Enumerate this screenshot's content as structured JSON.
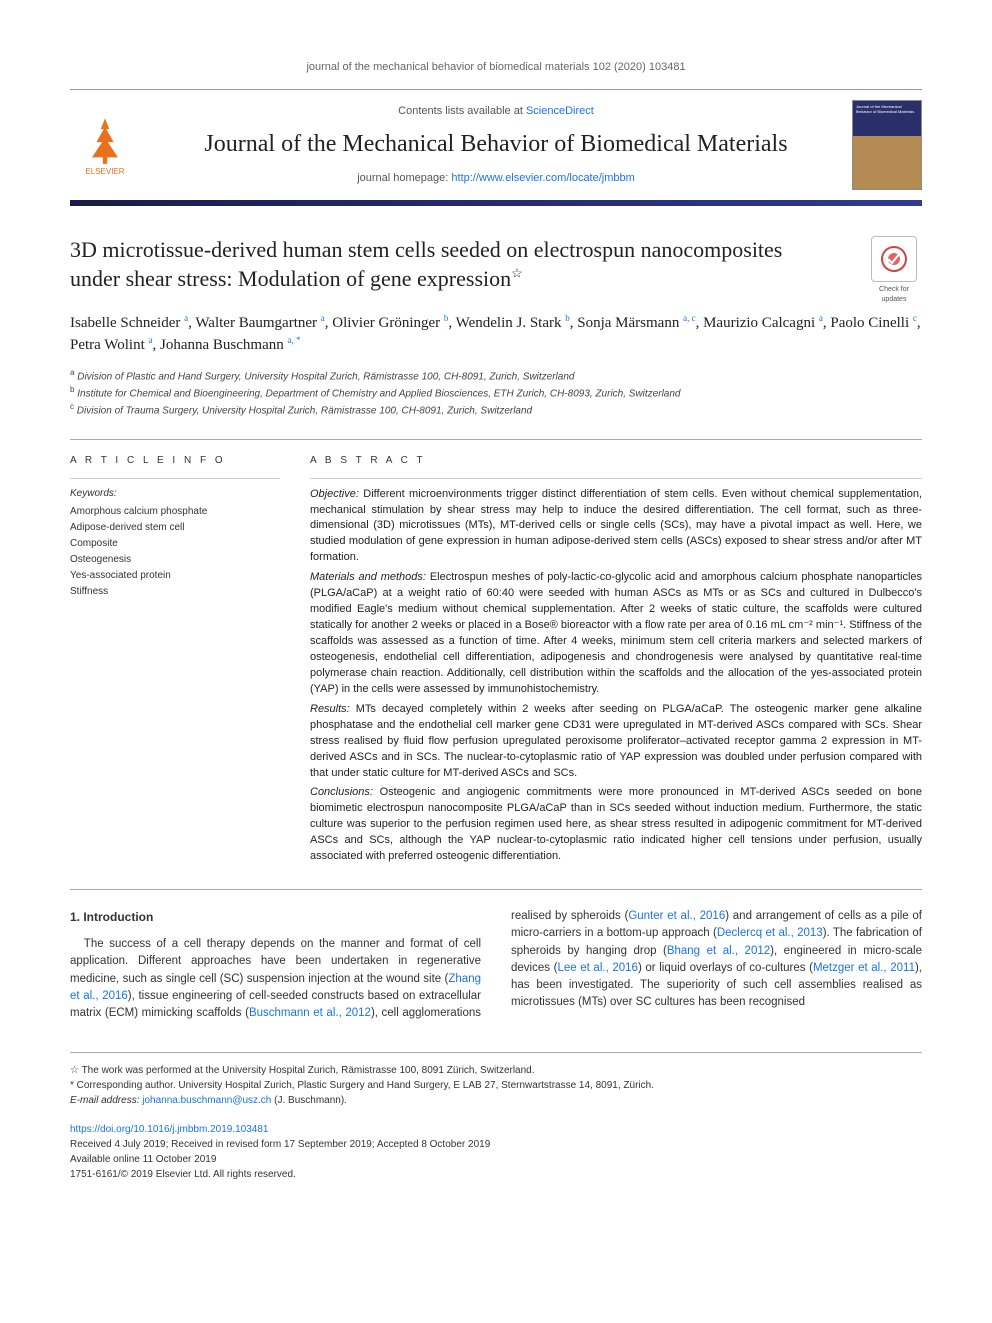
{
  "running_head": "journal of the mechanical behavior of biomedical materials 102 (2020) 103481",
  "masthead": {
    "contents_prefix": "Contents lists available at ",
    "contents_link": "ScienceDirect",
    "journal_name": "Journal of the Mechanical Behavior of Biomedical Materials",
    "homepage_prefix": "journal homepage: ",
    "homepage_url": "http://www.elsevier.com/locate/jmbbm",
    "publisher": "ELSEVIER"
  },
  "check_updates_label": "Check for updates",
  "article": {
    "title": "3D microtissue-derived human stem cells seeded on electrospun nanocomposites under shear stress: Modulation of gene expression",
    "title_note_marker": "☆",
    "authors_html": "Isabelle Schneider <sup>a</sup>, Walter Baumgartner <sup>a</sup>, Olivier Gröninger <sup>b</sup>, Wendelin J. Stark <sup>b</sup>, Sonja Märsmann <sup>a, c</sup>, Maurizio Calcagni <sup>a</sup>, Paolo Cinelli <sup>c</sup>, Petra Wolint <sup>a</sup>, Johanna Buschmann <sup>a, *</sup>",
    "affiliations": [
      "a Division of Plastic and Hand Surgery, University Hospital Zurich, Rämistrasse 100, CH-8091, Zurich, Switzerland",
      "b Institute for Chemical and Bioengineering, Department of Chemistry and Applied Biosciences, ETH Zurich, CH-8093, Zurich, Switzerland",
      "c Division of Trauma Surgery, University Hospital Zurich, Rämistrasse 100, CH-8091, Zurich, Switzerland"
    ]
  },
  "article_info": {
    "heading": "A R T I C L E  I N F O",
    "keywords_label": "Keywords:",
    "keywords": [
      "Amorphous calcium phosphate",
      "Adipose-derived stem cell",
      "Composite",
      "Osteogenesis",
      "Yes-associated protein",
      "Stiffness"
    ]
  },
  "abstract": {
    "heading": "A B S T R A C T",
    "objective_label": "Objective:",
    "objective": "Different microenvironments trigger distinct differentiation of stem cells. Even without chemical supplementation, mechanical stimulation by shear stress may help to induce the desired differentiation. The cell format, such as three-dimensional (3D) microtissues (MTs), MT-derived cells or single cells (SCs), may have a pivotal impact as well. Here, we studied modulation of gene expression in human adipose-derived stem cells (ASCs) exposed to shear stress and/or after MT formation.",
    "methods_label": "Materials and methods:",
    "methods": "Electrospun meshes of poly-lactic-co-glycolic acid and amorphous calcium phosphate nanoparticles (PLGA/aCaP) at a weight ratio of 60:40 were seeded with human ASCs as MTs or as SCs and cultured in Dulbecco's modified Eagle's medium without chemical supplementation. After 2 weeks of static culture, the scaffolds were cultured statically for another 2 weeks or placed in a Bose® bioreactor with a flow rate per area of 0.16 mL cm⁻² min⁻¹. Stiffness of the scaffolds was assessed as a function of time. After 4 weeks, minimum stem cell criteria markers and selected markers of osteogenesis, endothelial cell differentiation, adipogenesis and chondrogenesis were analysed by quantitative real-time polymerase chain reaction. Additionally, cell distribution within the scaffolds and the allocation of the yes-associated protein (YAP) in the cells were assessed by immunohistochemistry.",
    "results_label": "Results:",
    "results": "MTs decayed completely within 2 weeks after seeding on PLGA/aCaP. The osteogenic marker gene alkaline phosphatase and the endothelial cell marker gene CD31 were upregulated in MT-derived ASCs compared with SCs. Shear stress realised by fluid flow perfusion upregulated peroxisome proliferator–activated receptor gamma 2 expression in MT-derived ASCs and in SCs. The nuclear-to-cytoplasmic ratio of YAP expression was doubled under perfusion compared with that under static culture for MT-derived ASCs and SCs.",
    "conclusions_label": "Conclusions:",
    "conclusions": "Osteogenic and angiogenic commitments were more pronounced in MT-derived ASCs seeded on bone biomimetic electrospun nanocomposite PLGA/aCaP than in SCs seeded without induction medium. Furthermore, the static culture was superior to the perfusion regimen used here, as shear stress resulted in adipogenic commitment for MT-derived ASCs and SCs, although the YAP nuclear-to-cytoplasmic ratio indicated higher cell tensions under perfusion, usually associated with preferred osteogenic differentiation."
  },
  "introduction": {
    "heading": "1. Introduction",
    "para1_part1": "The success of a cell therapy depends on the manner and format of cell application. Different approaches have been undertaken in regenerative medicine, such as single cell (SC) suspension injection at the wound site (",
    "ref1": "Zhang et al., 2016",
    "para1_part2": "), tissue engineering of cell-seeded constructs based on extracellular matrix (ECM) mimicking scaffolds (",
    "ref2": "Buschmann et al., 2012",
    "para1_part3": "), cell agglomerations realised by spheroids (",
    "ref3": "Gunter et al., 2016",
    "para1_part4": ") and arrangement of cells as a pile of micro-carriers in a bottom-up approach (",
    "ref4": "Declercq et al., 2013",
    "para1_part5": "). The fabrication of spheroids by hanging drop (",
    "ref5": "Bhang et al., 2012",
    "para1_part6": "), engineered in micro-scale devices (",
    "ref6": "Lee et al., 2016",
    "para1_part7": ") or liquid overlays of co-cultures (",
    "ref7": "Metzger et al., 2011",
    "para1_part8": "), has been investigated. The superiority of such cell assemblies realised as microtissues (MTs) over SC cultures has been recognised"
  },
  "footnotes": {
    "note_star": "☆ The work was performed at the University Hospital Zurich, Rämistrasse 100, 8091 Zürich, Switzerland.",
    "corresponding": "* Corresponding author. University Hospital Zurich, Plastic Surgery and Hand Surgery, E LAB 27, Sternwartstrasse 14, 8091, Zürich.",
    "email_label": "E-mail address: ",
    "email": "johanna.buschmann@usz.ch",
    "email_suffix": " (J. Buschmann)."
  },
  "doi": {
    "url": "https://doi.org/10.1016/j.jmbbm.2019.103481",
    "received": "Received 4 July 2019; Received in revised form 17 September 2019; Accepted 8 October 2019",
    "available": "Available online 11 October 2019",
    "copyright": "1751-6161/© 2019 Elsevier Ltd. All rights reserved."
  },
  "colors": {
    "link": "#1a73e8",
    "accent": "#e9711c",
    "bar_dark": "#1b1c4a",
    "bar_light": "#313b8f"
  }
}
